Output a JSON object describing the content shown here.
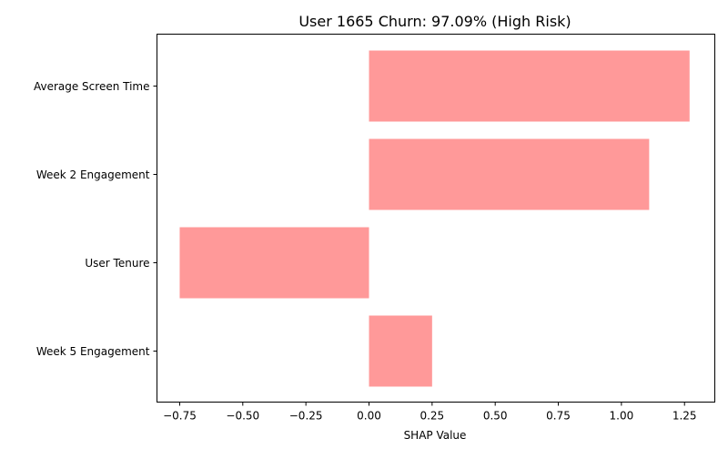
{
  "chart_data": {
    "type": "bar",
    "orientation": "horizontal",
    "title": "User 1665 Churn: 97.09% (High Risk)",
    "xlabel": "SHAP Value",
    "ylabel": "",
    "categories": [
      "Average Screen Time",
      "Week 2 Engagement",
      "User Tenure",
      "Week 5 Engagement"
    ],
    "values": [
      1.27,
      1.11,
      -0.75,
      0.25
    ],
    "xlim": [
      -0.84,
      1.37
    ],
    "xticks": [
      -0.75,
      -0.5,
      -0.25,
      0.0,
      0.25,
      0.5,
      0.75,
      1.0,
      1.25
    ],
    "xtick_labels": [
      "−0.75",
      "−0.50",
      "−0.25",
      "0.00",
      "0.25",
      "0.50",
      "0.75",
      "1.00",
      "1.25"
    ],
    "bar_color": "#ff9999",
    "grid": false,
    "legend": false
  }
}
